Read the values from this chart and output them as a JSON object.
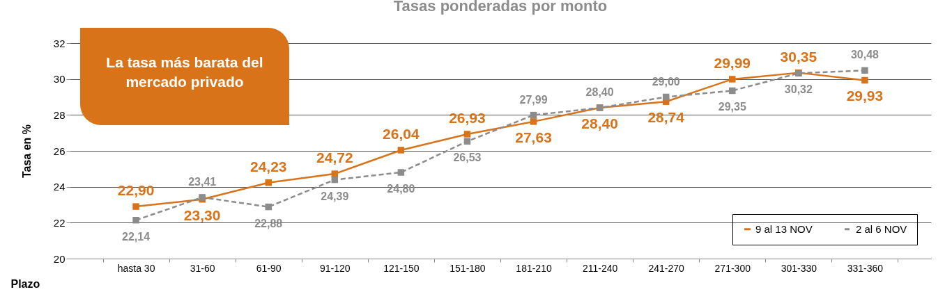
{
  "chart_data": {
    "type": "line",
    "title": "Tasas ponderadas por monto",
    "xlabel": "Plazo",
    "ylabel": "Tasa en %",
    "categories": [
      "hasta 30",
      "31-60",
      "61-90",
      "91-120",
      "121-150",
      "151-180",
      "181-210",
      "211-240",
      "241-270",
      "271-300",
      "301-330",
      "331-360"
    ],
    "series": [
      {
        "name": "9 al 13 NOV",
        "color": "#d9731a",
        "line_style": "solid",
        "values": [
          22.9,
          23.3,
          24.23,
          24.72,
          26.04,
          26.93,
          27.63,
          28.4,
          28.74,
          29.99,
          30.35,
          29.93
        ],
        "value_labels": [
          "22,90",
          "23,30",
          "24,23",
          "24,72",
          "26,04",
          "26,93",
          "27,63",
          "28,40",
          "28,74",
          "29,99",
          "30,35",
          "29,93"
        ]
      },
      {
        "name": "2 al 6 NOV",
        "color": "#8c8c8c",
        "line_style": "dashed",
        "values": [
          22.14,
          23.41,
          22.88,
          24.39,
          24.8,
          26.53,
          27.99,
          28.4,
          29.0,
          29.35,
          30.32,
          30.48
        ],
        "value_labels": [
          "22,14",
          "23,41",
          "22,88",
          "24,39",
          "24,80",
          "26,53",
          "27,99",
          "28,40",
          "29,00",
          "29,35",
          "30,32",
          "30,48"
        ]
      }
    ],
    "ylim": [
      20,
      32
    ],
    "yticks": [
      20,
      22,
      24,
      26,
      28,
      30,
      32
    ],
    "grid": "y",
    "legend": "bottom right",
    "marker": "square",
    "annotations": [
      "La tasa más barata del mercado privado"
    ]
  }
}
